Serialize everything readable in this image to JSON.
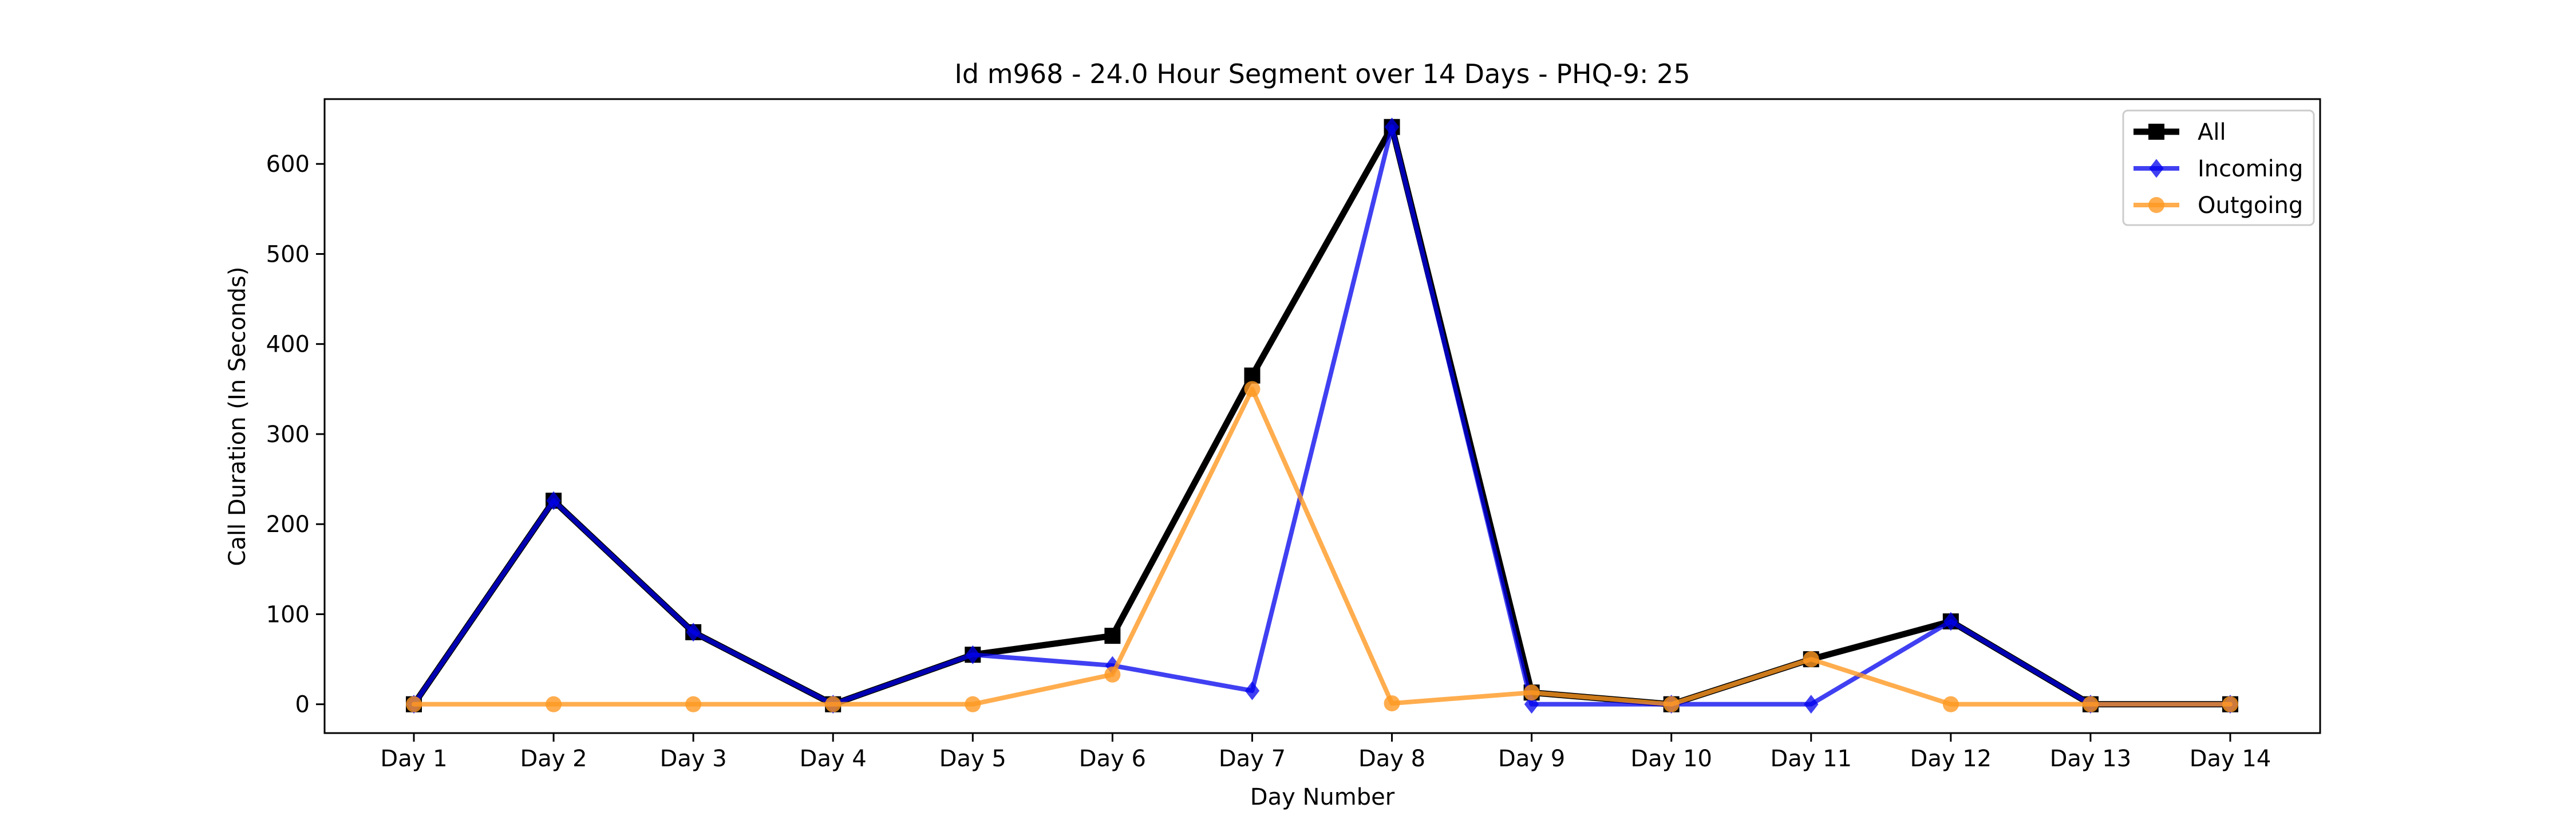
{
  "chart_data": {
    "type": "line",
    "title": "Id m968 - 24.0 Hour Segment over 14 Days - PHQ-9: 25",
    "xlabel": "Day Number",
    "ylabel": "Call Duration (In Seconds)",
    "categories": [
      "Day 1",
      "Day 2",
      "Day 3",
      "Day 4",
      "Day 5",
      "Day 6",
      "Day 7",
      "Day 8",
      "Day 9",
      "Day 10",
      "Day 11",
      "Day 12",
      "Day 13",
      "Day 14"
    ],
    "ylim": [
      -32,
      672
    ],
    "yticks": [
      0,
      100,
      200,
      300,
      400,
      500,
      600
    ],
    "grid": false,
    "legend_position": "top-right",
    "series": [
      {
        "name": "All",
        "color": "#000000",
        "marker": "square",
        "values": [
          0,
          226,
          80,
          0,
          55,
          76,
          365,
          641,
          13,
          0,
          50,
          92,
          0,
          0
        ]
      },
      {
        "name": "Incoming",
        "color": "#0000ee",
        "marker": "diamond",
        "values": [
          0,
          226,
          80,
          0,
          55,
          43,
          15,
          641,
          0,
          0,
          0,
          92,
          0,
          0
        ]
      },
      {
        "name": "Outgoing",
        "color": "#ff9922",
        "marker": "circle",
        "values": [
          0,
          0,
          0,
          0,
          0,
          33,
          350,
          1,
          13,
          0,
          50,
          0,
          0,
          0
        ]
      }
    ]
  }
}
